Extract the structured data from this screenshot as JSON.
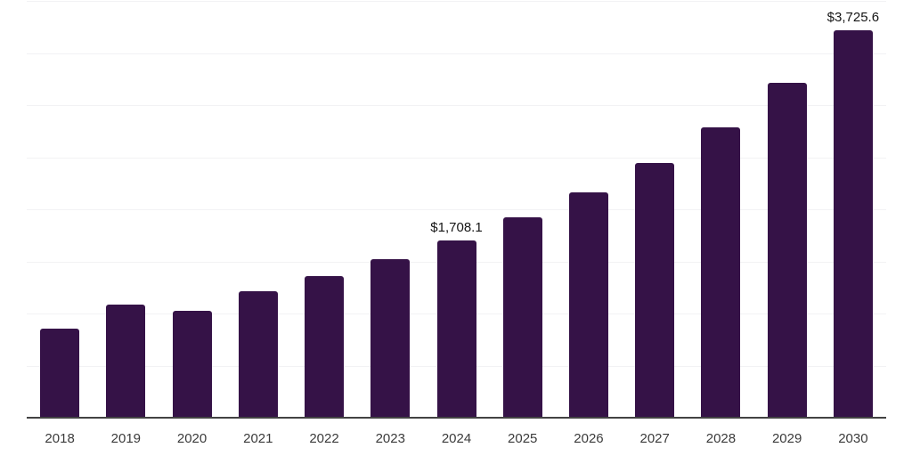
{
  "chart_data": {
    "type": "bar",
    "categories": [
      "2018",
      "2019",
      "2020",
      "2021",
      "2022",
      "2023",
      "2024",
      "2025",
      "2026",
      "2027",
      "2028",
      "2029",
      "2030"
    ],
    "values": [
      867.0,
      1093.9,
      1031.6,
      1221.7,
      1370.1,
      1526.1,
      1708.1,
      1932.8,
      2174.0,
      2452.8,
      2796.3,
      3220.0,
      3725.6
    ],
    "value_labels": [
      null,
      null,
      null,
      null,
      null,
      null,
      "$1,708.1",
      null,
      null,
      null,
      null,
      null,
      "$3,725.6"
    ],
    "ylim": [
      0,
      4000
    ],
    "gridline_values": [
      500,
      1000,
      1500,
      2000,
      2500,
      3000,
      3500,
      4000
    ],
    "grid": "horizontal-only",
    "legend": "none",
    "colors": {
      "bar": "#351247",
      "gridline": "#f2f2f4",
      "axis_line": "#434343",
      "tick_label": "#3b3b3b",
      "value_label": "#151515",
      "background": "#ffffff"
    }
  }
}
